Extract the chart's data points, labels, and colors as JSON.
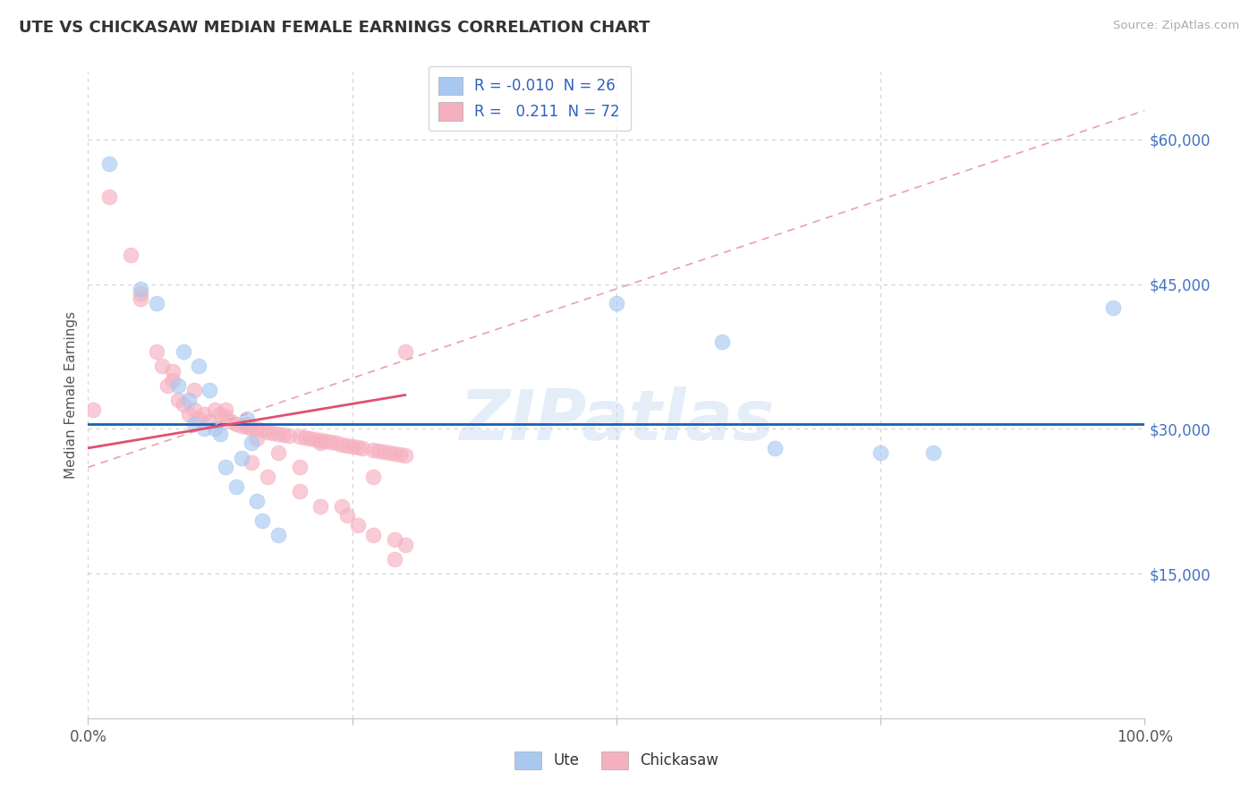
{
  "title": "UTE VS CHICKASAW MEDIAN FEMALE EARNINGS CORRELATION CHART",
  "ylabel": "Median Female Earnings",
  "source": "Source: ZipAtlas.com",
  "watermark": "ZIPatlas",
  "xlim": [
    0,
    1.0
  ],
  "ylim": [
    0,
    67000
  ],
  "ute_R": -0.01,
  "ute_N": 26,
  "chickasaw_R": 0.211,
  "chickasaw_N": 72,
  "ute_color": "#a8c8f0",
  "chickasaw_color": "#f5b0c0",
  "ute_line_color": "#1a5fb4",
  "chickasaw_solid_color": "#e05070",
  "chickasaw_dash_color": "#e8a0b0",
  "background_color": "#ffffff",
  "grid_color": "#d0d0d0",
  "right_label_color": "#4472c4",
  "legend_r_color": "#3060c0",
  "ute_x": [
    0.02,
    0.05,
    0.065,
    0.085,
    0.09,
    0.095,
    0.1,
    0.105,
    0.11,
    0.115,
    0.12,
    0.125,
    0.13,
    0.14,
    0.145,
    0.15,
    0.155,
    0.16,
    0.165,
    0.18,
    0.5,
    0.6,
    0.65,
    0.75,
    0.8,
    0.97
  ],
  "ute_y": [
    57500,
    44500,
    43000,
    34500,
    38000,
    33000,
    30500,
    36500,
    30000,
    34000,
    30000,
    29500,
    26000,
    24000,
    27000,
    31000,
    28500,
    22500,
    20500,
    19000,
    43000,
    39000,
    28000,
    27500,
    27500,
    42500
  ],
  "chick_x": [
    0.005,
    0.02,
    0.04,
    0.05,
    0.065,
    0.07,
    0.075,
    0.08,
    0.085,
    0.09,
    0.095,
    0.1,
    0.105,
    0.11,
    0.115,
    0.12,
    0.125,
    0.13,
    0.135,
    0.14,
    0.145,
    0.15,
    0.155,
    0.16,
    0.165,
    0.17,
    0.175,
    0.18,
    0.185,
    0.19,
    0.2,
    0.205,
    0.21,
    0.215,
    0.22,
    0.225,
    0.23,
    0.235,
    0.24,
    0.245,
    0.25,
    0.255,
    0.26,
    0.27,
    0.275,
    0.28,
    0.285,
    0.29,
    0.295,
    0.3,
    0.05,
    0.08,
    0.1,
    0.13,
    0.15,
    0.16,
    0.18,
    0.2,
    0.22,
    0.24,
    0.27,
    0.3,
    0.155,
    0.17,
    0.2,
    0.22,
    0.245,
    0.255,
    0.27,
    0.29,
    0.29,
    0.3
  ],
  "chick_y": [
    32000,
    54000,
    48000,
    43500,
    38000,
    36500,
    34500,
    35000,
    33000,
    32500,
    31500,
    32000,
    31000,
    31500,
    30800,
    32000,
    31500,
    31200,
    30800,
    30500,
    30300,
    30200,
    30000,
    30000,
    29800,
    29700,
    29600,
    29500,
    29400,
    29300,
    29200,
    29100,
    29000,
    28900,
    28800,
    28700,
    28600,
    28500,
    28400,
    28300,
    28200,
    28100,
    28000,
    27800,
    27700,
    27600,
    27500,
    27400,
    27300,
    27200,
    44000,
    36000,
    34000,
    32000,
    30500,
    29000,
    27500,
    26000,
    28500,
    22000,
    19000,
    18000,
    26500,
    25000,
    23500,
    22000,
    21000,
    20000,
    25000,
    18500,
    16500,
    38000
  ]
}
